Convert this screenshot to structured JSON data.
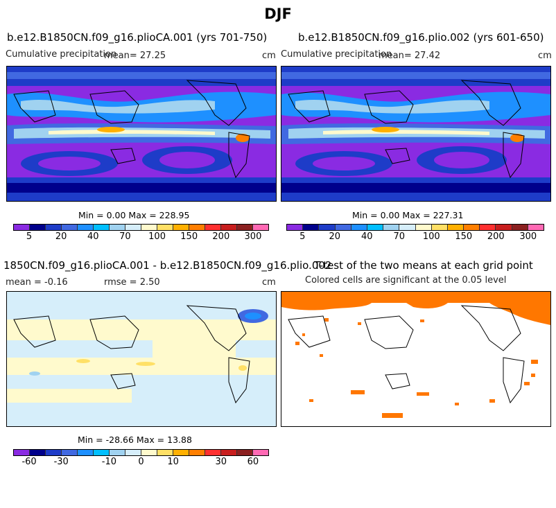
{
  "title": "DJF",
  "panels": [
    {
      "title": "b.e12.B1850CN.f09_g16.plioCA.001 (yrs 701-750)",
      "variable": "Cumulative precipitation",
      "stat_text": "mean=  27.25",
      "units": "cm",
      "minmax": "Min =    0.00 Max = 228.95"
    },
    {
      "title": "b.e12.B1850CN.f09_g16.plio.002 (yrs 601-650)",
      "variable": "Cumulative precipitation",
      "stat_text": "mean=  27.42",
      "units": "cm",
      "minmax": "Min =    0.00 Max = 227.31"
    },
    {
      "title": "1850CN.f09_g16.plioCA.001 - b.e12.B1850CN.f09_g16.plio.002",
      "mean_text": "mean =  -0.16",
      "rmse_text": "rmse =    2.50",
      "units": "cm",
      "minmax": "Min = -28.66  Max =  13.88"
    },
    {
      "title": "T-test of the two means at each grid point",
      "subtitle": "Colored cells are significant at the 0.05 level"
    }
  ],
  "colors": {
    "precip": [
      "#8a2be2",
      "#00008b",
      "#1e3cc8",
      "#4169e1",
      "#1e90ff",
      "#00bfff",
      "#a0d2f0",
      "#d6eefa",
      "#fffacd",
      "#ffe066",
      "#ffb000",
      "#ff7f00",
      "#ff3030",
      "#c81e1e",
      "#8b2020",
      "#ff69b4"
    ],
    "diff": [
      "#8a2be2",
      "#00008b",
      "#1e3cc8",
      "#4169e1",
      "#1e90ff",
      "#00bfff",
      "#a0d2f0",
      "#d6eefa",
      "#fffacd",
      "#ffe066",
      "#ffb000",
      "#ff7f00",
      "#ff3030",
      "#c81e1e",
      "#8b2020",
      "#ff69b4"
    ],
    "significant": "#ff7700"
  },
  "chart_data": [
    {
      "type": "heatmap",
      "title": "b.e12.B1850CN.f09_g16.plioCA.001 (yrs 701-750)",
      "variable": "Cumulative precipitation",
      "units": "cm",
      "mean": 27.25,
      "min": 0.0,
      "max": 228.95,
      "colorbar_ticks": [
        "5",
        "20",
        "40",
        "70",
        "100",
        "150",
        "200",
        "300"
      ]
    },
    {
      "type": "heatmap",
      "title": "b.e12.B1850CN.f09_g16.plio.002 (yrs 601-650)",
      "variable": "Cumulative precipitation",
      "units": "cm",
      "mean": 27.42,
      "min": 0.0,
      "max": 227.31,
      "colorbar_ticks": [
        "5",
        "20",
        "40",
        "70",
        "100",
        "150",
        "200",
        "300"
      ]
    },
    {
      "type": "heatmap",
      "title": "1850CN.f09_g16.plioCA.001 - b.e12.B1850CN.f09_g16.plio.002",
      "units": "cm",
      "mean": -0.16,
      "rmse": 2.5,
      "min": -28.66,
      "max": 13.88,
      "colorbar_ticks": [
        "-60",
        "-30",
        "-10",
        "0",
        "10",
        "30",
        "60"
      ]
    },
    {
      "type": "heatmap",
      "title": "T-test of the two means at each grid point",
      "subtitle": "Colored cells are significant at the 0.05 level"
    }
  ]
}
